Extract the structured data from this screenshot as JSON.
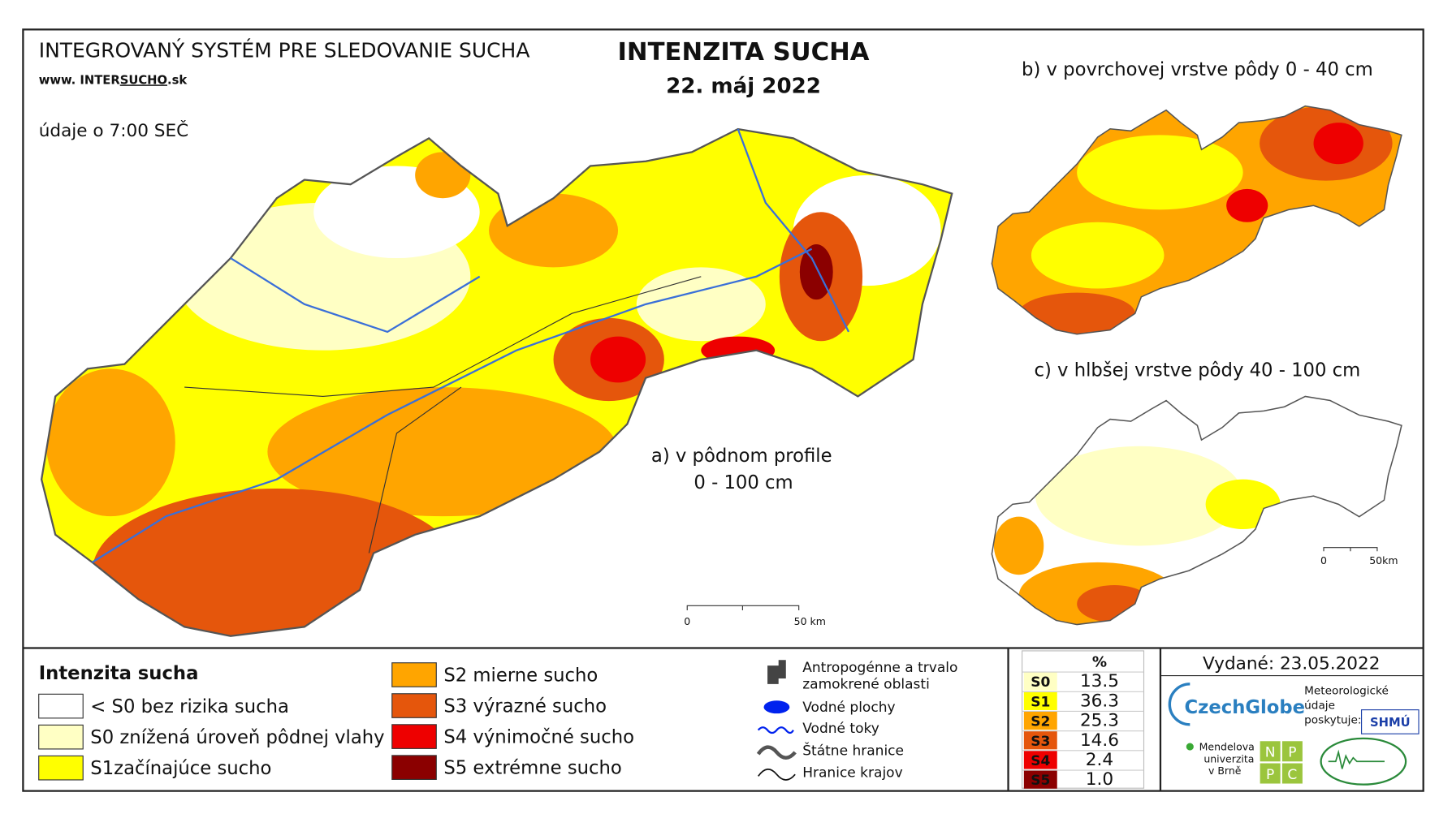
{
  "header": {
    "system": "INTEGROVANÝ SYSTÉM PRE SLEDOVANIE SUCHA",
    "web_prefix": "www. INTER",
    "web_highlight": "SUCHO",
    "web_suffix": ".sk",
    "time_note": "údaje o 7:00 SEČ",
    "title": "INTENZITA SUCHA",
    "date": "22. máj 2022"
  },
  "maps": [
    {
      "label": "a) v pôdnom profile",
      "label2": "0 - 100 cm",
      "scale_start": "0",
      "scale_end": "50 km"
    },
    {
      "label": "b) v povrchovej vrstve pôdy 0 - 40 cm"
    },
    {
      "label": "c) v hlbšej vrstve pôdy 40 - 100 cm",
      "scale_start": "0",
      "scale_end": "50km"
    }
  ],
  "legend": {
    "title": "Intenzita sucha",
    "classes": [
      {
        "label": "< S0 bez rizika sucha",
        "color": "#ffffff"
      },
      {
        "label": "S0 znížená úroveň pôdnej vlahy",
        "color": "#ffffc4"
      },
      {
        "label": "S1začínajúce sucho",
        "color": "#ffff00"
      },
      {
        "label": "S2 mierne sucho",
        "color": "#ffa500"
      },
      {
        "label": "S3 výrazné sucho",
        "color": "#e5560c"
      },
      {
        "label": "S4 výnimočné sucho",
        "color": "#ee0000"
      },
      {
        "label": "S5 extrémne sucho",
        "color": "#8b0000"
      }
    ]
  },
  "features": {
    "anthropogenic_1": "Antropogénne a trvalo",
    "anthropogenic_2": "zamokrené oblasti",
    "water_bodies": "Vodné plochy",
    "rivers": "Vodné toky",
    "state_border": "Štátne hranice",
    "region_border": "Hranice krajov"
  },
  "stats": {
    "header": "%",
    "rows": [
      {
        "class": "S0",
        "value": "13.5",
        "color": "#ffffc4"
      },
      {
        "class": "S1",
        "value": "36.3",
        "color": "#ffff00"
      },
      {
        "class": "S2",
        "value": "25.3",
        "color": "#ffa500"
      },
      {
        "class": "S3",
        "value": "14.6",
        "color": "#e5560c"
      },
      {
        "class": "S4",
        "value": "2.4",
        "color": "#ee0000"
      },
      {
        "class": "S5",
        "value": "1.0",
        "color": "#8b0000"
      }
    ]
  },
  "footer": {
    "issued": "Vydané: 23.05.2022",
    "czechglobe": "CzechGlobe",
    "meteo": [
      "Meteorologické",
      "údaje",
      "poskytuje:"
    ],
    "shmu": "SHMÚ",
    "mendel": [
      "Mendelova",
      "univerzita",
      "v Brně"
    ],
    "npp": [
      "N",
      "P",
      "P",
      "C"
    ]
  }
}
